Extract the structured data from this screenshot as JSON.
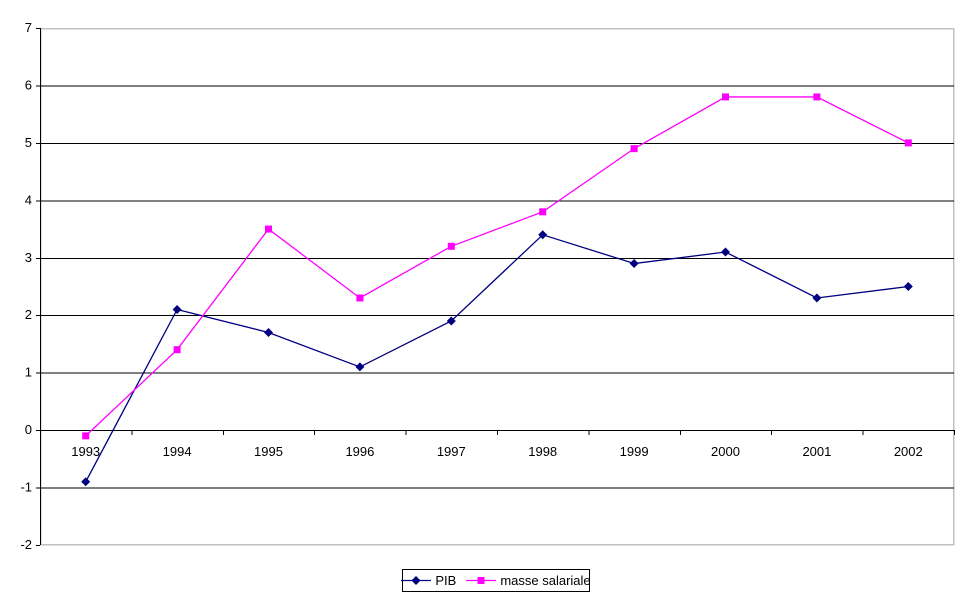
{
  "chart_data": {
    "type": "line",
    "categories": [
      "1993",
      "1994",
      "1995",
      "1996",
      "1997",
      "1998",
      "1999",
      "2000",
      "2001",
      "2002"
    ],
    "series": [
      {
        "name": "PIB",
        "color": "#000080",
        "marker": "diamond",
        "values": [
          -0.9,
          2.1,
          1.7,
          1.1,
          1.9,
          3.4,
          2.9,
          3.1,
          2.3,
          2.5
        ]
      },
      {
        "name": "masse salariale",
        "color": "#FF00FF",
        "marker": "square",
        "values": [
          -0.1,
          1.4,
          3.5,
          2.3,
          3.2,
          3.8,
          4.9,
          5.8,
          5.8,
          5.0
        ]
      }
    ],
    "title": "",
    "xlabel": "",
    "ylabel": "",
    "ylim": [
      -2,
      7
    ],
    "ytick_step": 1,
    "grid": "horizontal",
    "gridline_color": "#000000",
    "plot_border_color": "#C0C0C0",
    "axis_color": "#000000",
    "tick_label_color": "#000000",
    "background": "#FFFFFF",
    "legend_position": "bottom-center"
  },
  "legend": {
    "items": [
      {
        "label": "PIB"
      },
      {
        "label": "masse salariale"
      }
    ]
  }
}
